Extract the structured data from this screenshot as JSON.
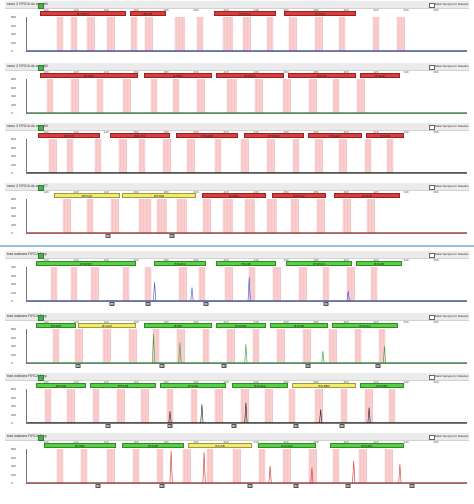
{
  "checkbox_label": "Mark Sample for Deletion",
  "colors": {
    "red_bin": "#e03b3b",
    "yellow_bin": "#f3ec6a",
    "green_bin": "#52d23f",
    "red_band": "#f5a6a6",
    "blue_trace": "#3a55d8",
    "green_trace": "#2fa33b",
    "black_trace": "#222222",
    "red_trace": "#d83030"
  },
  "panels": [
    {
      "title": "ramu 2 FIRCA do amp 60",
      "ruler": [
        "100",
        "120",
        "140",
        "160",
        "180",
        "200",
        "220",
        "240",
        "260",
        "280",
        "300",
        "320",
        "340",
        "360"
      ],
      "yticks": [
        "800",
        "600",
        "400",
        "200",
        "0"
      ],
      "bins": [
        {
          "label": "B7IX8F3",
          "color": "red"
        },
        {
          "label": "B7L48",
          "color": "red"
        },
        {
          "label": "B7H5C3",
          "color": "red"
        },
        {
          "label": "B7H49",
          "color": "red"
        }
      ],
      "trace": "blue",
      "peaks": [],
      "callouts": []
    },
    {
      "title": "ramu 2 FIRCA do amp 60",
      "ruler": [
        "100",
        "120",
        "140",
        "160",
        "180",
        "200",
        "220",
        "240",
        "260",
        "280",
        "300",
        "320",
        "340",
        "360"
      ],
      "yticks": [
        "800",
        "600",
        "400",
        "200",
        "0"
      ],
      "bins": [
        {
          "label": "B7LBN",
          "color": "red"
        },
        {
          "label": "B7M83",
          "color": "red"
        },
        {
          "label": "B7H5C3",
          "color": "red"
        },
        {
          "label": "B7H49",
          "color": "red"
        },
        {
          "label": "B7H40",
          "color": "red"
        }
      ],
      "trace": "green",
      "peaks": [],
      "callouts": []
    },
    {
      "title": "ramu 2 FIRCA do amp 60",
      "ruler": [
        "100",
        "120",
        "140",
        "160",
        "180",
        "200",
        "220",
        "240",
        "260",
        "280",
        "300",
        "320",
        "340",
        "360"
      ],
      "yticks": [
        "800",
        "600",
        "400",
        "200",
        "0"
      ],
      "bins": [
        {
          "label": "B7IX7N",
          "color": "red"
        },
        {
          "label": "B7L4T2",
          "color": "red"
        },
        {
          "label": "B7H4R8",
          "color": "red"
        },
        {
          "label": "B7M4A2",
          "color": "red"
        },
        {
          "label": "B7H4A3",
          "color": "red"
        },
        {
          "label": "B7H4B",
          "color": "red"
        }
      ],
      "trace": "black",
      "peaks": [],
      "callouts": []
    },
    {
      "title": "ramu 2 FIRCA do amp 77",
      "ruler": [
        "100",
        "120",
        "140",
        "160",
        "180",
        "200",
        "220",
        "240",
        "260",
        "280",
        "300",
        "320",
        "340",
        "360"
      ],
      "yticks": [
        "800",
        "600",
        "400",
        "200",
        "0"
      ],
      "bins": [
        {
          "label": "B7IXAN",
          "color": "yellow"
        },
        {
          "label": "B7IX8R",
          "color": "yellow"
        },
        {
          "label": "B7LBI4",
          "color": "red"
        },
        {
          "label": "B7H4A2",
          "color": "red"
        },
        {
          "label": "B7H4B",
          "color": "red"
        }
      ],
      "trace": "red",
      "peaks": [],
      "callouts": [
        "112",
        "160"
      ]
    },
    {
      "title": "bad walwara FIRCA 1 bp",
      "ruler": [
        "100",
        "120",
        "140",
        "160",
        "180",
        "200",
        "220",
        "240",
        "260",
        "280",
        "300",
        "320",
        "340",
        "360"
      ],
      "yticks": [
        "400",
        "300",
        "200",
        "100",
        "0"
      ],
      "bins": [
        {
          "label": "B7H5FR",
          "color": "green"
        },
        {
          "label": "B7H4F3",
          "color": "green"
        },
        {
          "label": "B7L4B",
          "color": "green"
        },
        {
          "label": "B7H5C3",
          "color": "green"
        },
        {
          "label": "B7H4B",
          "color": "green"
        }
      ],
      "trace": "blue",
      "peaks": [],
      "callouts": [
        "114",
        "148",
        "200",
        "290"
      ]
    },
    {
      "title": "bad walwara FIRCA 1 bp",
      "ruler": [
        "100",
        "120",
        "140",
        "160",
        "180",
        "200",
        "220",
        "240",
        "260",
        "280",
        "300",
        "320",
        "340",
        "360"
      ],
      "yticks": [
        "800",
        "600",
        "400",
        "200",
        "0"
      ],
      "bins": [
        {
          "label": "B7IX8N",
          "color": "green"
        },
        {
          "label": "B7LAM",
          "color": "yellow"
        },
        {
          "label": "B7I48",
          "color": "green"
        },
        {
          "label": "B7H4R2",
          "color": "green"
        },
        {
          "label": "B7H4B",
          "color": "green"
        },
        {
          "label": "B7H4A3",
          "color": "green"
        }
      ],
      "trace": "green",
      "peaks": [],
      "callouts": [
        "113",
        "138",
        "198",
        "268",
        "324"
      ]
    },
    {
      "title": "bad walwara FIRCA 1 bp",
      "ruler": [
        "100",
        "120",
        "140",
        "160",
        "180",
        "200",
        "220",
        "240",
        "260",
        "280",
        "300",
        "320",
        "340",
        "360"
      ],
      "yticks": [
        "800",
        "600",
        "400",
        "200",
        "0"
      ],
      "bins": [
        {
          "label": "B7IX4R",
          "color": "green"
        },
        {
          "label": "B7IXAB",
          "color": "green"
        },
        {
          "label": "B7H4B",
          "color": "green"
        },
        {
          "label": "B7H4A2",
          "color": "green"
        },
        {
          "label": "B7LBB2",
          "color": "yellow"
        },
        {
          "label": "B7H4B4",
          "color": "green"
        }
      ],
      "trace": "black",
      "peaks": [],
      "callouts": [
        "129",
        "158",
        "198",
        "266",
        "310"
      ]
    },
    {
      "title": "bad walwara FIRCA 1 bp",
      "ruler": [
        "100",
        "120",
        "140",
        "160",
        "180",
        "200",
        "220",
        "240",
        "260",
        "280",
        "300",
        "320",
        "340",
        "360"
      ],
      "yticks": [
        "800",
        "600",
        "400",
        "200",
        "0"
      ],
      "bins": [
        {
          "label": "B7IX8F",
          "color": "green"
        },
        {
          "label": "B7H4B",
          "color": "green"
        },
        {
          "label": "B7LAB",
          "color": "yellow"
        },
        {
          "label": "B7H4A2",
          "color": "green"
        },
        {
          "label": "B7H4B4",
          "color": "green"
        }
      ],
      "trace": "red",
      "peaks": [],
      "callouts": [
        "130",
        "160",
        "220",
        "258",
        "296",
        "338"
      ]
    }
  ]
}
